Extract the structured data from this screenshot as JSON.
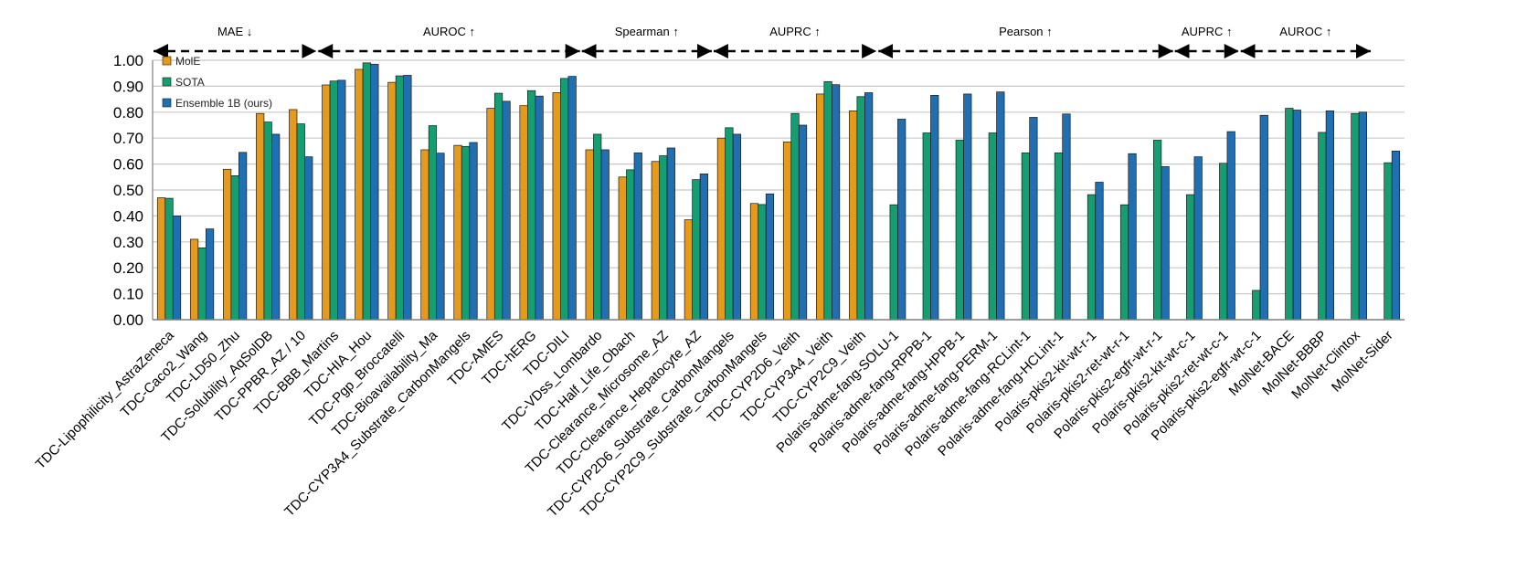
{
  "chart_data": {
    "type": "bar",
    "ylim": [
      0,
      1
    ],
    "yticks": [
      "0.00",
      "0.10",
      "0.20",
      "0.30",
      "0.40",
      "0.50",
      "0.60",
      "0.70",
      "0.80",
      "0.90",
      "1.00"
    ],
    "grid": true,
    "legend_position": "top-left",
    "colors": [
      "#E69A1C",
      "#159E72",
      "#1F6FB2"
    ],
    "groups": [
      {
        "label": "MAE ↓",
        "start": 0,
        "end": 4
      },
      {
        "label": "AUROC ↑",
        "start": 5,
        "end": 12
      },
      {
        "label": "Spearman ↑",
        "start": 13,
        "end": 16
      },
      {
        "label": "AUPRC ↑",
        "start": 17,
        "end": 21
      },
      {
        "label": "Pearson ↑",
        "start": 22,
        "end": 30
      },
      {
        "label": "AUPRC ↑",
        "start": 31,
        "end": 32
      },
      {
        "label": "AUROC ↑",
        "start": 33,
        "end": 36
      }
    ],
    "categories": [
      "TDC-Lipophilicity_AstraZeneca",
      "TDC-Caco2_Wang",
      "TDC-LD50_Zhu",
      "TDC-Solubility_AqSolDB",
      "TDC-PPBR_AZ / 10",
      "TDC-BBB_Martins",
      "TDC-HIA_Hou",
      "TDC-Pgp_Broccatelli",
      "TDC-Bioavailability_Ma",
      "TDC-CYP3A4_Substrate_CarbonMangels",
      "TDC-AMES",
      "TDC-hERG",
      "TDC-DILI",
      "TDC-VDss_Lombardo",
      "TDC-Half_Life_Obach",
      "TDC-Clearance_Microsome_AZ",
      "TDC-Clearance_Hepatocyte_AZ",
      "TDC-CYP2D6_Substrate_CarbonMangels",
      "TDC-CYP2C9_Substrate_CarbonMangels",
      "TDC-CYP2D6_Veith",
      "TDC-CYP3A4_Veith",
      "TDC-CYP2C9_Veith",
      "Polaris-adme-fang-SOLU-1",
      "Polaris-adme-fang-RPPB-1",
      "Polaris-adme-fang-HPPB-1",
      "Polaris-adme-fang-PERM-1",
      "Polaris-adme-fang-RCLint-1",
      "Polaris-adme-fang-HCLint-1",
      "Polaris-pkis2-kit-wt-r-1",
      "Polaris-pkis2-ret-wt-r-1",
      "Polaris-pkis2-egfr-wt-r-1",
      "Polaris-pkis2-kit-wt-c-1",
      "Polaris-pkis2-ret-wt-c-1",
      "Polaris-pkis2-egfr-wt-c-1",
      "MolNet-BACE",
      "MolNet-BBBP",
      "MolNet-Clintox",
      "MolNet-Sider"
    ],
    "series": [
      {
        "name": "MolE",
        "values": [
          0.47,
          0.31,
          0.58,
          0.795,
          0.81,
          0.905,
          0.965,
          0.915,
          0.655,
          0.672,
          0.815,
          0.825,
          0.875,
          0.655,
          0.55,
          0.61,
          0.385,
          0.7,
          0.448,
          0.685,
          0.87,
          0.805,
          null,
          null,
          null,
          null,
          null,
          null,
          null,
          null,
          null,
          null,
          null,
          null,
          null,
          null,
          null,
          null
        ]
      },
      {
        "name": "SOTA",
        "values": [
          0.468,
          0.277,
          0.555,
          0.762,
          0.755,
          0.92,
          0.99,
          0.94,
          0.748,
          0.668,
          0.873,
          0.883,
          0.93,
          0.715,
          0.578,
          0.632,
          0.54,
          0.74,
          0.444,
          0.795,
          0.918,
          0.86,
          0.443,
          0.72,
          0.692,
          0.72,
          0.643,
          0.643,
          0.482,
          0.443,
          0.692,
          0.482,
          0.603,
          0.113,
          0.815,
          0.722,
          0.795,
          0.605
        ]
      },
      {
        "name": "Ensemble 1B (ours)",
        "values": [
          0.4,
          0.35,
          0.645,
          0.715,
          0.628,
          0.923,
          0.985,
          0.942,
          0.642,
          0.683,
          0.842,
          0.862,
          0.938,
          0.655,
          0.643,
          0.662,
          0.562,
          0.715,
          0.485,
          0.75,
          0.906,
          0.875,
          0.773,
          0.865,
          0.87,
          0.878,
          0.78,
          0.793,
          0.53,
          0.64,
          0.59,
          0.628,
          0.725,
          0.788,
          0.808,
          0.805,
          0.8,
          0.65
        ]
      }
    ]
  }
}
